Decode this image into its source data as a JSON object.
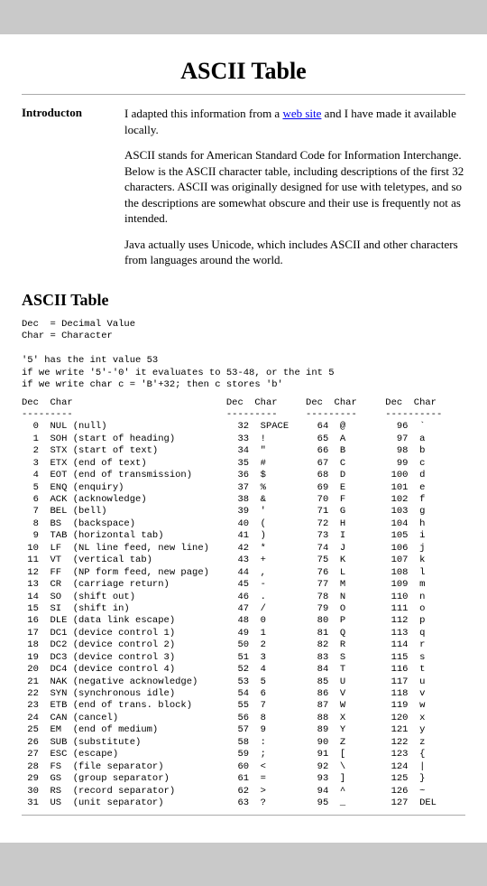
{
  "page_title": "ASCII Table",
  "intro": {
    "label": "Introducton",
    "p1_pre": "I adapted this information from a ",
    "link_text": "web site",
    "p1_post": " and I have made it available locally.",
    "p2": "ASCII stands for American Standard Code for Information Interchange. Below is the ASCII character table, including descriptions of the first 32 characters. ASCII was originally designed for use with teletypes, and so the descriptions are somewhat obscure and their use is frequently not as intended.",
    "p3": "Java actually uses Unicode, which includes ASCII and other characters from languages around the world."
  },
  "section_title": "ASCII Table",
  "legend": "Dec  = Decimal Value\nChar = Character\n\n'5' has the int value 53\nif we write '5'-'0' it evaluates to 53-48, or the int 5\nif we write char c = 'B'+32; then c stores 'b'\n",
  "table": {
    "header": "Dec  Char                           Dec  Char     Dec  Char     Dec  Char",
    "divider": "---------                           ---------     ---------     ----------",
    "cols": [
      [
        [
          "0",
          "NUL (null)"
        ],
        [
          "1",
          "SOH (start of heading)"
        ],
        [
          "2",
          "STX (start of text)"
        ],
        [
          "3",
          "ETX (end of text)"
        ],
        [
          "4",
          "EOT (end of transmission)"
        ],
        [
          "5",
          "ENQ (enquiry)"
        ],
        [
          "6",
          "ACK (acknowledge)"
        ],
        [
          "7",
          "BEL (bell)"
        ],
        [
          "8",
          "BS  (backspace)"
        ],
        [
          "9",
          "TAB (horizontal tab)"
        ],
        [
          "10",
          "LF  (NL line feed, new line)"
        ],
        [
          "11",
          "VT  (vertical tab)"
        ],
        [
          "12",
          "FF  (NP form feed, new page)"
        ],
        [
          "13",
          "CR  (carriage return)"
        ],
        [
          "14",
          "SO  (shift out)"
        ],
        [
          "15",
          "SI  (shift in)"
        ],
        [
          "16",
          "DLE (data link escape)"
        ],
        [
          "17",
          "DC1 (device control 1)"
        ],
        [
          "18",
          "DC2 (device control 2)"
        ],
        [
          "19",
          "DC3 (device control 3)"
        ],
        [
          "20",
          "DC4 (device control 4)"
        ],
        [
          "21",
          "NAK (negative acknowledge)"
        ],
        [
          "22",
          "SYN (synchronous idle)"
        ],
        [
          "23",
          "ETB (end of trans. block)"
        ],
        [
          "24",
          "CAN (cancel)"
        ],
        [
          "25",
          "EM  (end of medium)"
        ],
        [
          "26",
          "SUB (substitute)"
        ],
        [
          "27",
          "ESC (escape)"
        ],
        [
          "28",
          "FS  (file separator)"
        ],
        [
          "29",
          "GS  (group separator)"
        ],
        [
          "30",
          "RS  (record separator)"
        ],
        [
          "31",
          "US  (unit separator)"
        ]
      ],
      [
        [
          "32",
          "SPACE"
        ],
        [
          "33",
          "!"
        ],
        [
          "34",
          "\""
        ],
        [
          "35",
          "#"
        ],
        [
          "36",
          "$"
        ],
        [
          "37",
          "%"
        ],
        [
          "38",
          "&"
        ],
        [
          "39",
          "'"
        ],
        [
          "40",
          "("
        ],
        [
          "41",
          ")"
        ],
        [
          "42",
          "*"
        ],
        [
          "43",
          "+"
        ],
        [
          "44",
          ","
        ],
        [
          "45",
          "-"
        ],
        [
          "46",
          "."
        ],
        [
          "47",
          "/"
        ],
        [
          "48",
          "0"
        ],
        [
          "49",
          "1"
        ],
        [
          "50",
          "2"
        ],
        [
          "51",
          "3"
        ],
        [
          "52",
          "4"
        ],
        [
          "53",
          "5"
        ],
        [
          "54",
          "6"
        ],
        [
          "55",
          "7"
        ],
        [
          "56",
          "8"
        ],
        [
          "57",
          "9"
        ],
        [
          "58",
          ":"
        ],
        [
          "59",
          ";"
        ],
        [
          "60",
          "<"
        ],
        [
          "61",
          "="
        ],
        [
          "62",
          ">"
        ],
        [
          "63",
          "?"
        ]
      ],
      [
        [
          "64",
          "@"
        ],
        [
          "65",
          "A"
        ],
        [
          "66",
          "B"
        ],
        [
          "67",
          "C"
        ],
        [
          "68",
          "D"
        ],
        [
          "69",
          "E"
        ],
        [
          "70",
          "F"
        ],
        [
          "71",
          "G"
        ],
        [
          "72",
          "H"
        ],
        [
          "73",
          "I"
        ],
        [
          "74",
          "J"
        ],
        [
          "75",
          "K"
        ],
        [
          "76",
          "L"
        ],
        [
          "77",
          "M"
        ],
        [
          "78",
          "N"
        ],
        [
          "79",
          "O"
        ],
        [
          "80",
          "P"
        ],
        [
          "81",
          "Q"
        ],
        [
          "82",
          "R"
        ],
        [
          "83",
          "S"
        ],
        [
          "84",
          "T"
        ],
        [
          "85",
          "U"
        ],
        [
          "86",
          "V"
        ],
        [
          "87",
          "W"
        ],
        [
          "88",
          "X"
        ],
        [
          "89",
          "Y"
        ],
        [
          "90",
          "Z"
        ],
        [
          "91",
          "["
        ],
        [
          "92",
          "\\"
        ],
        [
          "93",
          "]"
        ],
        [
          "94",
          "^"
        ],
        [
          "95",
          "_"
        ]
      ],
      [
        [
          "96",
          "`"
        ],
        [
          "97",
          "a"
        ],
        [
          "98",
          "b"
        ],
        [
          "99",
          "c"
        ],
        [
          "100",
          "d"
        ],
        [
          "101",
          "e"
        ],
        [
          "102",
          "f"
        ],
        [
          "103",
          "g"
        ],
        [
          "104",
          "h"
        ],
        [
          "105",
          "i"
        ],
        [
          "106",
          "j"
        ],
        [
          "107",
          "k"
        ],
        [
          "108",
          "l"
        ],
        [
          "109",
          "m"
        ],
        [
          "110",
          "n"
        ],
        [
          "111",
          "o"
        ],
        [
          "112",
          "p"
        ],
        [
          "113",
          "q"
        ],
        [
          "114",
          "r"
        ],
        [
          "115",
          "s"
        ],
        [
          "116",
          "t"
        ],
        [
          "117",
          "u"
        ],
        [
          "118",
          "v"
        ],
        [
          "119",
          "w"
        ],
        [
          "120",
          "x"
        ],
        [
          "121",
          "y"
        ],
        [
          "122",
          "z"
        ],
        [
          "123",
          "{"
        ],
        [
          "124",
          "|"
        ],
        [
          "125",
          "}"
        ],
        [
          "126",
          "~"
        ],
        [
          "127",
          "DEL"
        ]
      ]
    ]
  }
}
